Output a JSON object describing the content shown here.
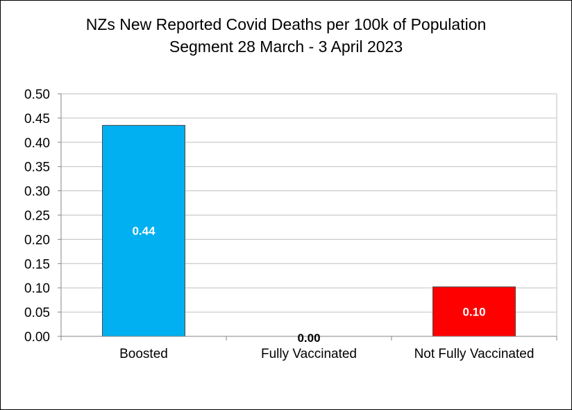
{
  "chart_data": {
    "type": "bar",
    "title": "NZs New Reported Covid Deaths per 100k of Population",
    "subtitle": "Segment 28 March - 3 April 2023",
    "xlabel": "",
    "ylabel": "",
    "categories": [
      "Boosted",
      "Fully Vaccinated",
      "Not Fully Vaccinated"
    ],
    "values": [
      0.435,
      0.0,
      0.102
    ],
    "data_labels": [
      "0.44",
      "0.00",
      "0.10"
    ],
    "colors": [
      "#00B0F0",
      "#7F7F7F",
      "#FF0000"
    ],
    "label_colors": [
      "#ffffff",
      "#000000",
      "#ffffff"
    ],
    "ylim": [
      0,
      0.5
    ],
    "y_ticks": [
      "0.00",
      "0.05",
      "0.10",
      "0.15",
      "0.20",
      "0.25",
      "0.30",
      "0.35",
      "0.40",
      "0.45",
      "0.50"
    ],
    "grid": true,
    "legend": "none"
  }
}
